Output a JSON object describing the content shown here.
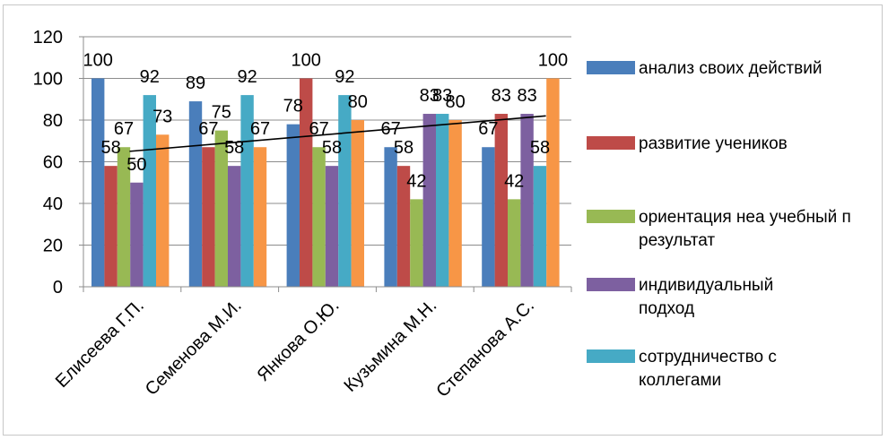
{
  "chart_data": {
    "type": "bar",
    "categories": [
      "Елисеева Г.П.",
      "Семенова М.И.",
      "Янкова О.Ю.",
      "Кузьмина М.Н.",
      "Степанова А.С."
    ],
    "series": [
      {
        "name": "анализ своих действий",
        "color": "#4a7ebb",
        "values": [
          100,
          89,
          78,
          67,
          67
        ]
      },
      {
        "name": "развитие учеников",
        "color": "#be4b48",
        "values": [
          58,
          67,
          100,
          58,
          83
        ]
      },
      {
        "name": "ориентация неа учебный п результат",
        "color": "#98b954",
        "values": [
          67,
          75,
          67,
          42,
          42
        ]
      },
      {
        "name": "индивидуальный подход",
        "color": "#7d60a0",
        "values": [
          50,
          58,
          58,
          83,
          83
        ]
      },
      {
        "name": "сотрудничество с коллегами",
        "color": "#46aac5",
        "values": [
          92,
          92,
          92,
          83,
          58
        ]
      },
      {
        "name": "",
        "color": "#f79646",
        "values": [
          73,
          67,
          80,
          80,
          100
        ]
      }
    ],
    "ylim": [
      0,
      120
    ],
    "yticks": [
      0,
      20,
      40,
      60,
      80,
      100,
      120
    ],
    "grid": true,
    "legend_position": "right",
    "trendline": {
      "color": "#000000",
      "from_category": "Елисеева Г.П.",
      "to_category": "Степанова А.С.",
      "start_value": 65,
      "end_value": 82
    }
  }
}
